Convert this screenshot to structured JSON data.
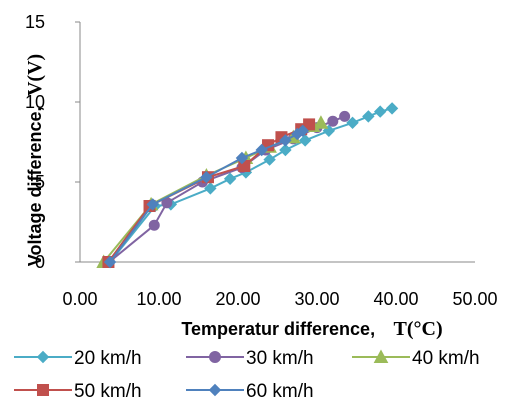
{
  "chart_data": {
    "type": "line",
    "xlabel": "Temperatur difference,",
    "xlabel_unit": "T(°C)",
    "ylabel": "Voltage difference,",
    "ylabel_unit": "V(V)",
    "xlim": [
      0,
      50
    ],
    "ylim": [
      0,
      15
    ],
    "x_ticks": [
      "0.00",
      "10.00",
      "20.00",
      "30.00",
      "40.00",
      "50.00"
    ],
    "y_ticks": [
      "0",
      "5",
      "10",
      "15"
    ],
    "grid": false,
    "legend_position": "bottom",
    "series": [
      {
        "name": "20 km/h",
        "color": "#4bacc6",
        "marker": "diamond",
        "points": [
          [
            3.8,
            0
          ],
          [
            9.5,
            3.5
          ],
          [
            11.5,
            3.6
          ],
          [
            16.5,
            4.6
          ],
          [
            19,
            5.2
          ],
          [
            21,
            5.6
          ],
          [
            24,
            6.4
          ],
          [
            26,
            7.0
          ],
          [
            28.5,
            7.6
          ],
          [
            31.5,
            8.2
          ],
          [
            34.5,
            8.7
          ],
          [
            36.5,
            9.1
          ],
          [
            38,
            9.4
          ],
          [
            39.5,
            9.6
          ]
        ]
      },
      {
        "name": "30 km/h",
        "color": "#8064a2",
        "marker": "circle",
        "points": [
          [
            3.7,
            0
          ],
          [
            9.4,
            2.3
          ],
          [
            11,
            3.7
          ],
          [
            15.5,
            5.0
          ],
          [
            20.5,
            5.9
          ],
          [
            23.5,
            7.0
          ],
          [
            27,
            7.7
          ],
          [
            30,
            8.4
          ],
          [
            32,
            8.8
          ],
          [
            33.5,
            9.1
          ]
        ]
      },
      {
        "name": "40 km/h",
        "color": "#9bbb59",
        "marker": "triangle",
        "points": [
          [
            3.0,
            0
          ],
          [
            9,
            3.6
          ],
          [
            16,
            5.4
          ],
          [
            21,
            6.5
          ],
          [
            24,
            7.2
          ],
          [
            27,
            7.8
          ],
          [
            29.5,
            8.5
          ],
          [
            30.5,
            8.7
          ]
        ]
      },
      {
        "name": "50 km/h",
        "color": "#c0504d",
        "marker": "square",
        "points": [
          [
            3.6,
            0
          ],
          [
            8.8,
            3.5
          ],
          [
            16.2,
            5.3
          ],
          [
            20.8,
            6.0
          ],
          [
            23.8,
            7.3
          ],
          [
            25.5,
            7.8
          ],
          [
            28,
            8.3
          ],
          [
            29,
            8.6
          ]
        ]
      },
      {
        "name": "60 km/h",
        "color": "#4f81bd",
        "marker": "diamond",
        "points": [
          [
            3.8,
            0
          ],
          [
            9.2,
            3.6
          ],
          [
            16,
            5.3
          ],
          [
            20.5,
            6.5
          ],
          [
            23,
            7.0
          ],
          [
            26,
            7.6
          ],
          [
            27.5,
            8.0
          ],
          [
            28.2,
            8.2
          ]
        ]
      }
    ]
  }
}
